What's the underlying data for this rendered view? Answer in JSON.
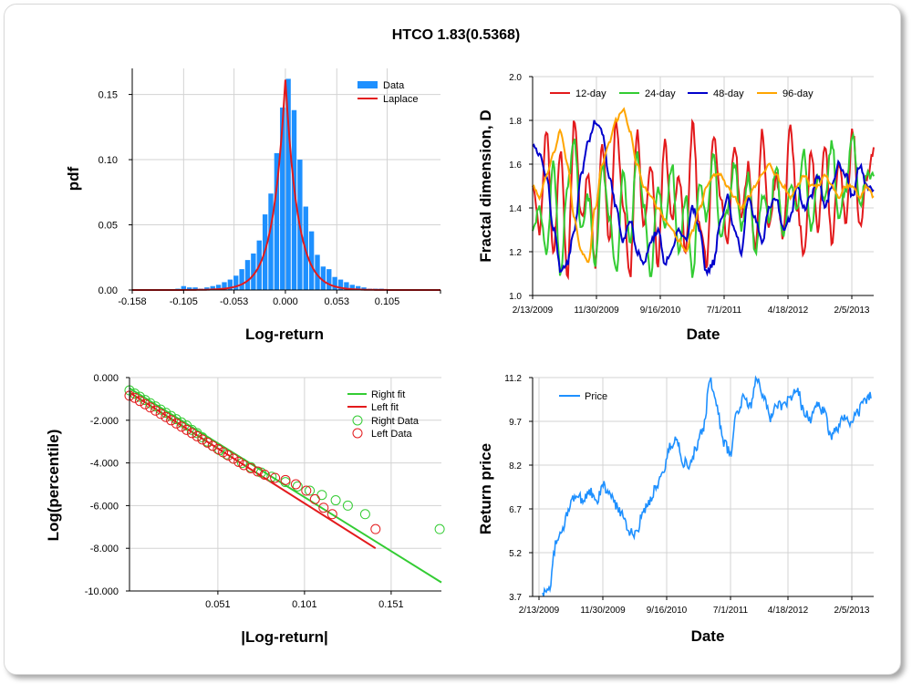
{
  "page_title": "HTCO 1.83(0.5368)",
  "chart_data": [
    {
      "type": "bar",
      "panel": "pdf-histogram",
      "xlabel": "Log-return",
      "ylabel": "pdf",
      "xlim": [
        -0.158,
        0.16
      ],
      "ylim": [
        0,
        0.17
      ],
      "xticks": [
        "-0.158",
        "-0.105",
        "-0.053",
        "0.000",
        "0.053",
        "0.105"
      ],
      "xtick_values": [
        -0.158,
        -0.105,
        -0.053,
        0.0,
        0.053,
        0.105
      ],
      "yticks": [
        "0.00",
        "0.05",
        "0.10",
        "0.15"
      ],
      "ytick_values": [
        0,
        0.05,
        0.1,
        0.15
      ],
      "legend": [
        "Data",
        "Laplace"
      ],
      "colors": {
        "bar": "#1e90ff",
        "fit": "#e31a1c"
      },
      "bin_centers": [
        -0.147,
        -0.141,
        -0.135,
        -0.129,
        -0.123,
        -0.117,
        -0.111,
        -0.105,
        -0.099,
        -0.093,
        -0.087,
        -0.081,
        -0.075,
        -0.069,
        -0.063,
        -0.057,
        -0.051,
        -0.045,
        -0.039,
        -0.033,
        -0.027,
        -0.021,
        -0.015,
        -0.009,
        -0.003,
        0.003,
        0.009,
        0.015,
        0.021,
        0.027,
        0.033,
        0.039,
        0.045,
        0.051,
        0.057,
        0.063,
        0.069,
        0.075,
        0.081,
        0.087,
        0.093,
        0.099,
        0.105,
        0.111,
        0.117,
        0.123,
        0.129,
        0.135,
        0.141,
        0.147
      ],
      "values": [
        0,
        0,
        0,
        0,
        0,
        0.0005,
        0.001,
        0.003,
        0.002,
        0.002,
        0.001,
        0.002,
        0.003,
        0.004,
        0.006,
        0.008,
        0.011,
        0.016,
        0.023,
        0.028,
        0.038,
        0.058,
        0.074,
        0.105,
        0.14,
        0.162,
        0.138,
        0.1,
        0.064,
        0.045,
        0.027,
        0.018,
        0.016,
        0.01,
        0.008,
        0.006,
        0.004,
        0.003,
        0.002,
        0.001,
        0.001,
        0.001,
        0.0005,
        0.0005,
        0,
        0,
        0,
        0,
        0,
        0
      ],
      "laplace": {
        "mu": 0.0,
        "peak": 0.162,
        "scale": 0.0125
      }
    },
    {
      "type": "line",
      "panel": "fractal-dimension",
      "xlabel": "Date",
      "ylabel": "Fractal dimension, D",
      "ylim": [
        1.0,
        2.0
      ],
      "xticks": [
        "2/13/2009",
        "11/30/2009",
        "9/16/2010",
        "7/1/2011",
        "4/18/2012",
        "2/5/2013"
      ],
      "yticks": [
        "1.0",
        "1.2",
        "1.4",
        "1.6",
        "1.8",
        "2.0"
      ],
      "ytick_values": [
        1.0,
        1.2,
        1.4,
        1.6,
        1.8,
        2.0
      ],
      "n_points": 300,
      "series": [
        {
          "name": "12-day",
          "color": "#e31a1c",
          "anchors": [
            1.5,
            1.3,
            1.75,
            1.2,
            1.65,
            1.1,
            1.8,
            1.35,
            1.55,
            1.15,
            1.7,
            1.25,
            1.8,
            1.4,
            1.1,
            1.75,
            1.3,
            1.6,
            1.15,
            1.7,
            1.35,
            1.55,
            1.2,
            1.8,
            1.3,
            1.15,
            1.75,
            1.45,
            1.25,
            1.7,
            1.35,
            1.6,
            1.2,
            1.75,
            1.3,
            1.55,
            1.25,
            1.8,
            1.4,
            1.2,
            1.65,
            1.3,
            1.7,
            1.25,
            1.6,
            1.35,
            1.75,
            1.3,
            1.55,
            1.65
          ]
        },
        {
          "name": "24-day",
          "color": "#33cc33",
          "anchors": [
            1.3,
            1.4,
            1.2,
            1.6,
            1.1,
            1.5,
            1.7,
            1.3,
            1.45,
            1.15,
            1.6,
            1.35,
            1.1,
            1.55,
            1.25,
            1.65,
            1.4,
            1.1,
            1.5,
            1.3,
            1.6,
            1.2,
            1.45,
            1.1,
            1.5,
            1.35,
            1.65,
            1.25,
            1.4,
            1.6,
            1.3,
            1.55,
            1.2,
            1.45,
            1.35,
            1.6,
            1.25,
            1.5,
            1.4,
            1.65,
            1.3,
            1.55,
            1.45,
            1.7,
            1.35,
            1.5,
            1.75,
            1.4,
            1.55,
            1.55
          ]
        },
        {
          "name": "48-day",
          "color": "#0000cc",
          "anchors": [
            1.68,
            1.65,
            1.55,
            1.3,
            1.12,
            1.15,
            1.3,
            1.55,
            1.7,
            1.8,
            1.75,
            1.55,
            1.4,
            1.25,
            1.35,
            1.2,
            1.15,
            1.25,
            1.3,
            1.15,
            1.2,
            1.3,
            1.25,
            1.4,
            1.3,
            1.1,
            1.15,
            1.35,
            1.45,
            1.3,
            1.2,
            1.45,
            1.35,
            1.25,
            1.4,
            1.45,
            1.3,
            1.35,
            1.5,
            1.4,
            1.45,
            1.55,
            1.4,
            1.5,
            1.6,
            1.55,
            1.45,
            1.6,
            1.5,
            1.47
          ]
        },
        {
          "name": "96-day",
          "color": "#ffa500",
          "anchors": [
            1.5,
            1.45,
            1.55,
            1.65,
            1.75,
            1.6,
            1.35,
            1.2,
            1.15,
            1.4,
            1.6,
            1.7,
            1.8,
            1.85,
            1.75,
            1.6,
            1.5,
            1.45,
            1.4,
            1.35,
            1.3,
            1.25,
            1.2,
            1.3,
            1.4,
            1.5,
            1.55,
            1.55,
            1.5,
            1.45,
            1.4,
            1.45,
            1.5,
            1.55,
            1.6,
            1.55,
            1.5,
            1.45,
            1.5,
            1.55,
            1.5,
            1.5,
            1.55,
            1.5,
            1.45,
            1.5,
            1.5,
            1.45,
            1.5,
            1.45
          ]
        }
      ]
    },
    {
      "type": "scatter",
      "panel": "tail-log-log",
      "xlabel": "|Log-return|",
      "ylabel": "Log(percentile)",
      "xlim": [
        0.0,
        0.18
      ],
      "ylim": [
        -10.0,
        0.0
      ],
      "xticks": [
        "0.051",
        "0.101",
        "0.151"
      ],
      "xtick_values": [
        0.051,
        0.101,
        0.151
      ],
      "yticks": [
        "0.000",
        "-2.000",
        "-4.000",
        "-6.000",
        "-8.000",
        "-10.000"
      ],
      "ytick_values": [
        0,
        -2,
        -4,
        -6,
        -8,
        -10
      ],
      "legend": [
        "Right fit",
        "Left fit",
        "Right Data",
        "Left Data"
      ],
      "series": [
        {
          "name": "Right fit",
          "color": "#33cc33",
          "line": [
            [
              0.0,
              -0.5
            ],
            [
              0.18,
              -9.6
            ]
          ]
        },
        {
          "name": "Left fit",
          "color": "#e31a1c",
          "line": [
            [
              0.0,
              -0.7
            ],
            [
              0.142,
              -8.0
            ]
          ]
        },
        {
          "name": "Right Data",
          "color": "#33cc33",
          "points": [
            [
              0.0,
              -0.6
            ],
            [
              0.003,
              -0.75
            ],
            [
              0.006,
              -0.9
            ],
            [
              0.009,
              -1.05
            ],
            [
              0.012,
              -1.2
            ],
            [
              0.015,
              -1.35
            ],
            [
              0.018,
              -1.5
            ],
            [
              0.021,
              -1.65
            ],
            [
              0.024,
              -1.8
            ],
            [
              0.027,
              -1.95
            ],
            [
              0.03,
              -2.1
            ],
            [
              0.033,
              -2.25
            ],
            [
              0.036,
              -2.45
            ],
            [
              0.039,
              -2.6
            ],
            [
              0.042,
              -2.8
            ],
            [
              0.045,
              -3.0
            ],
            [
              0.048,
              -3.2
            ],
            [
              0.052,
              -3.4
            ],
            [
              0.056,
              -3.6
            ],
            [
              0.06,
              -3.8
            ],
            [
              0.065,
              -4.0
            ],
            [
              0.07,
              -4.2
            ],
            [
              0.076,
              -4.45
            ],
            [
              0.082,
              -4.65
            ],
            [
              0.09,
              -4.9
            ],
            [
              0.097,
              -5.1
            ],
            [
              0.104,
              -5.3
            ],
            [
              0.111,
              -5.5
            ],
            [
              0.119,
              -5.75
            ],
            [
              0.126,
              -6.0
            ],
            [
              0.136,
              -6.4
            ],
            [
              0.179,
              -7.1
            ]
          ]
        },
        {
          "name": "Left Data",
          "color": "#e31a1c",
          "points": [
            [
              0.0,
              -0.85
            ],
            [
              0.003,
              -0.95
            ],
            [
              0.006,
              -1.1
            ],
            [
              0.009,
              -1.25
            ],
            [
              0.012,
              -1.4
            ],
            [
              0.015,
              -1.55
            ],
            [
              0.018,
              -1.7
            ],
            [
              0.021,
              -1.85
            ],
            [
              0.024,
              -2.0
            ],
            [
              0.027,
              -2.15
            ],
            [
              0.03,
              -2.3
            ],
            [
              0.033,
              -2.45
            ],
            [
              0.036,
              -2.6
            ],
            [
              0.039,
              -2.75
            ],
            [
              0.042,
              -2.9
            ],
            [
              0.045,
              -3.05
            ],
            [
              0.048,
              -3.2
            ],
            [
              0.051,
              -3.35
            ],
            [
              0.054,
              -3.5
            ],
            [
              0.057,
              -3.65
            ],
            [
              0.06,
              -3.8
            ],
            [
              0.063,
              -3.95
            ],
            [
              0.066,
              -4.1
            ],
            [
              0.07,
              -4.25
            ],
            [
              0.074,
              -4.4
            ],
            [
              0.078,
              -4.55
            ],
            [
              0.084,
              -4.7
            ],
            [
              0.09,
              -4.8
            ],
            [
              0.096,
              -5.0
            ],
            [
              0.102,
              -5.3
            ],
            [
              0.107,
              -5.7
            ],
            [
              0.112,
              -6.1
            ],
            [
              0.117,
              -6.4
            ],
            [
              0.142,
              -7.1
            ]
          ]
        }
      ]
    },
    {
      "type": "line",
      "panel": "return-price",
      "xlabel": "Date",
      "ylabel": "Return price",
      "ylim": [
        3.7,
        11.2
      ],
      "xticks": [
        "2/13/2009",
        "11/30/2009",
        "9/16/2010",
        "7/1/2011",
        "4/18/2012",
        "2/5/2013"
      ],
      "yticks": [
        "11.2",
        "9.7",
        "8.2",
        "6.7",
        "5.2",
        "3.7"
      ],
      "ytick_values": [
        11.2,
        9.7,
        8.2,
        6.7,
        5.2,
        3.7
      ],
      "n_points": 360,
      "legend": [
        "Price"
      ],
      "series": [
        {
          "name": "Price",
          "color": "#1e90ff",
          "anchors": [
            3.8,
            4.0,
            5.5,
            6.0,
            6.8,
            7.2,
            7.0,
            7.3,
            6.9,
            7.5,
            7.2,
            6.8,
            6.5,
            5.9,
            5.8,
            6.6,
            7.0,
            7.5,
            8.0,
            8.8,
            9.1,
            8.3,
            8.2,
            8.8,
            9.5,
            11.1,
            10.2,
            9.0,
            8.6,
            10.0,
            10.5,
            10.2,
            11.2,
            10.6,
            9.8,
            10.3,
            10.2,
            10.5,
            10.8,
            10.0,
            9.8,
            10.3,
            10.0,
            9.2,
            9.5,
            9.8,
            9.6,
            10.0,
            10.4,
            10.6
          ]
        }
      ]
    }
  ]
}
